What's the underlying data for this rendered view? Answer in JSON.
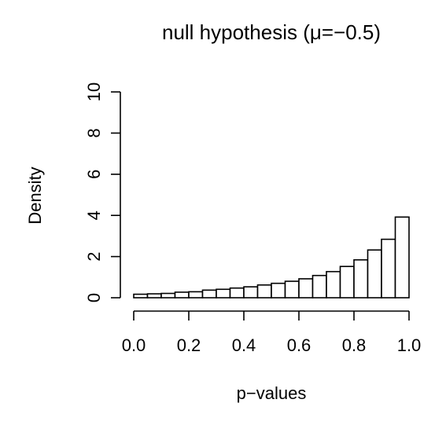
{
  "chart_data": {
    "type": "bar",
    "title": "null hypothesis (μ=−0.5)",
    "xlabel": "p−values",
    "ylabel": "Density",
    "xlim": [
      0,
      1
    ],
    "ylim": [
      0,
      10
    ],
    "x_ticks": [
      "0.0",
      "0.2",
      "0.4",
      "0.6",
      "0.8",
      "1.0"
    ],
    "y_ticks": [
      "0",
      "2",
      "4",
      "6",
      "8",
      "10"
    ],
    "bin_width": 0.05,
    "bin_edges": [
      0.0,
      0.05,
      0.1,
      0.15,
      0.2,
      0.25,
      0.3,
      0.35,
      0.4,
      0.45,
      0.5,
      0.55,
      0.6,
      0.65,
      0.7,
      0.75,
      0.8,
      0.85,
      0.9,
      0.95,
      1.0
    ],
    "values": [
      0.17,
      0.19,
      0.21,
      0.27,
      0.29,
      0.37,
      0.41,
      0.47,
      0.53,
      0.62,
      0.7,
      0.8,
      0.92,
      1.08,
      1.27,
      1.52,
      1.84,
      2.32,
      2.84,
      3.92
    ],
    "grid": false,
    "bar_fill": "#ffffff",
    "bar_stroke": "#000000"
  }
}
